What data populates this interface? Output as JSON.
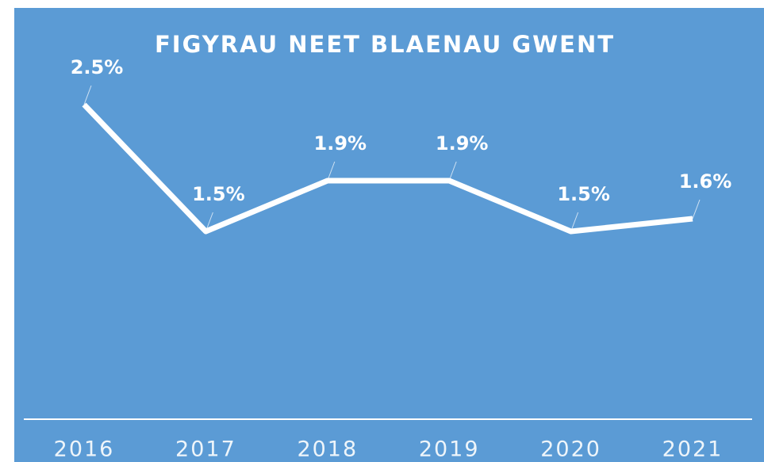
{
  "chart_data": {
    "type": "line",
    "title": "FIGYRAU NEET BLAENAU GWENT",
    "categories": [
      "2016",
      "2017",
      "2018",
      "2019",
      "2020",
      "2021"
    ],
    "values": [
      2.5,
      1.5,
      1.9,
      1.9,
      1.5,
      1.6
    ],
    "value_labels": [
      "2.5%",
      "1.5%",
      "1.9%",
      "1.9%",
      "1.5%",
      "1.6%"
    ],
    "color": "#ffffff",
    "ylim": [
      0,
      3
    ]
  }
}
